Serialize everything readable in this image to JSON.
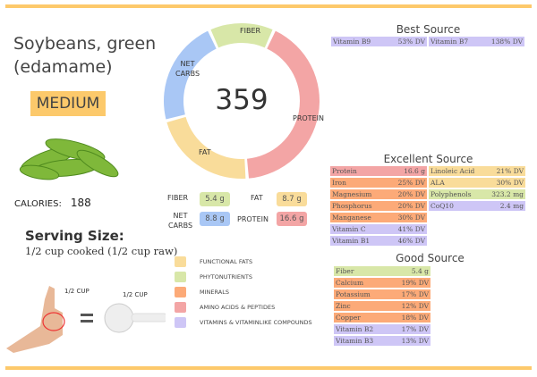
{
  "food": {
    "name_line1": "Soybeans, green",
    "name_line2": "(edamame)",
    "level": "MEDIUM",
    "calories_label": "CALORIES:",
    "calories": "188"
  },
  "serving": {
    "label": "Serving Size:",
    "value": "1/2 cup cooked (1/2 cup raw)",
    "hand_label": "1/2 CUP",
    "cup_label": "1/2 CUP",
    "equals": "=",
    "cup_handle_text": "1/2 CUP"
  },
  "colors": {
    "fats": "#f9dc9a",
    "phyto": "#d8e7a8",
    "minerals": "#fcaa78",
    "amino": "#f3a5a5",
    "vitamins": "#cec6f6",
    "carbs": "#a9c7f5",
    "accent": "#fdc96b"
  },
  "donut": {
    "center": "359",
    "segments": [
      {
        "label": "FIBER",
        "value": 5.4,
        "color": "#d8e7a8"
      },
      {
        "label": "PROTEIN",
        "value": 16.6,
        "color": "#f3a5a5"
      },
      {
        "label": "FAT",
        "value": 8.7,
        "color": "#f9dc9a"
      },
      {
        "label": "NET CARBS",
        "value": 8.8,
        "color": "#a9c7f5"
      }
    ],
    "label_net": "NET",
    "label_carbs": "CARBS"
  },
  "macros": {
    "fiber_label": "FIBER",
    "fiber": "5.4 g",
    "fat_label": "FAT",
    "fat": "8.7 g",
    "net_label": "NET",
    "carbs_label": "CARBS",
    "carbs": "8.8 g",
    "protein_label": "PROTEIN",
    "protein": "16.6 g"
  },
  "legend": [
    {
      "label": "FUNCTIONAL  FATS",
      "color": "#f9dc9a"
    },
    {
      "label": "PHYTONUTRIENTS",
      "color": "#d8e7a8"
    },
    {
      "label": "MINERALS",
      "color": "#fcaa78"
    },
    {
      "label": "AMINO ACIDS & PEPTIDES",
      "color": "#f3a5a5"
    },
    {
      "label": "VITAMINS & VITAMINLIKE COMPOUNDS",
      "color": "#cec6f6"
    }
  ],
  "best": {
    "title": "Best Source",
    "items": [
      {
        "name": "Vitamin B9",
        "value": "53% DV",
        "color": "#cec6f6"
      },
      {
        "name": "Vitamin B7",
        "value": "138% DV",
        "color": "#cec6f6"
      }
    ]
  },
  "excellent": {
    "title": "Excellent Source",
    "col1": [
      {
        "name": "Protein",
        "value": "16.6 g",
        "color": "#f3a5a5"
      },
      {
        "name": "Iron",
        "value": "25% DV",
        "color": "#fcaa78"
      },
      {
        "name": "Magnesium",
        "value": "20% DV",
        "color": "#fcaa78"
      },
      {
        "name": "Phosphorus",
        "value": "20% DV",
        "color": "#fcaa78"
      },
      {
        "name": "Manganese",
        "value": "30% DV",
        "color": "#fcaa78"
      },
      {
        "name": "Vitamin C",
        "value": "41% DV",
        "color": "#cec6f6"
      },
      {
        "name": "Vitamin B1",
        "value": "46% DV",
        "color": "#cec6f6"
      }
    ],
    "col2": [
      {
        "name": "Linoleic Acid",
        "value": "21% DV",
        "color": "#f9dc9a"
      },
      {
        "name": "ALA",
        "value": "30% DV",
        "color": "#f9dc9a"
      },
      {
        "name": "Polyphenols",
        "value": "323.2 mg",
        "color": "#d8e7a8"
      },
      {
        "name": "CoQ10",
        "value": "2.4 mg",
        "color": "#cec6f6"
      }
    ]
  },
  "good": {
    "title": "Good Source",
    "items": [
      {
        "name": "Fiber",
        "value": "5.4 g",
        "color": "#d8e7a8"
      },
      {
        "name": "Calcium",
        "value": "19% DV",
        "color": "#fcaa78"
      },
      {
        "name": "Potassium",
        "value": "17% DV",
        "color": "#fcaa78"
      },
      {
        "name": "Zinc",
        "value": "12% DV",
        "color": "#fcaa78"
      },
      {
        "name": "Copper",
        "value": "18% DV",
        "color": "#fcaa78"
      },
      {
        "name": "Vitamin B2",
        "value": "17% DV",
        "color": "#cec6f6"
      },
      {
        "name": "Vitamin B3",
        "value": "13% DV",
        "color": "#cec6f6"
      }
    ]
  }
}
